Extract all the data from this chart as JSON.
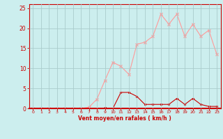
{
  "x": [
    0,
    1,
    2,
    3,
    4,
    5,
    6,
    7,
    8,
    9,
    10,
    11,
    12,
    13,
    14,
    15,
    16,
    17,
    18,
    19,
    20,
    21,
    22,
    23
  ],
  "y_rafales": [
    0,
    0,
    0,
    0,
    0,
    0,
    0,
    0.3,
    2.3,
    7,
    11.5,
    10.5,
    8.5,
    16,
    16.5,
    18,
    23.5,
    21,
    23.5,
    18,
    21,
    18,
    19.5,
    13.5
  ],
  "y_moyen": [
    0,
    0,
    0,
    0,
    0,
    0,
    0,
    0,
    0,
    0.1,
    0,
    4,
    4,
    3,
    1,
    1,
    1,
    1,
    2.5,
    1,
    2.5,
    1,
    0.5,
    0.5
  ],
  "line_color_rafales": "#FF9999",
  "line_color_moyen": "#CC0000",
  "bg_color": "#CCEEEE",
  "grid_color": "#AACCCC",
  "axis_color": "#CC0000",
  "xlabel": "Vent moyen/en rafales ( km/h )",
  "ylim": [
    0,
    26
  ],
  "xlim": [
    -0.5,
    23.5
  ],
  "yticks": [
    0,
    5,
    10,
    15,
    20,
    25
  ],
  "xticks": [
    0,
    1,
    2,
    3,
    4,
    5,
    6,
    7,
    8,
    9,
    10,
    11,
    12,
    13,
    14,
    15,
    16,
    17,
    18,
    19,
    20,
    21,
    22,
    23
  ]
}
